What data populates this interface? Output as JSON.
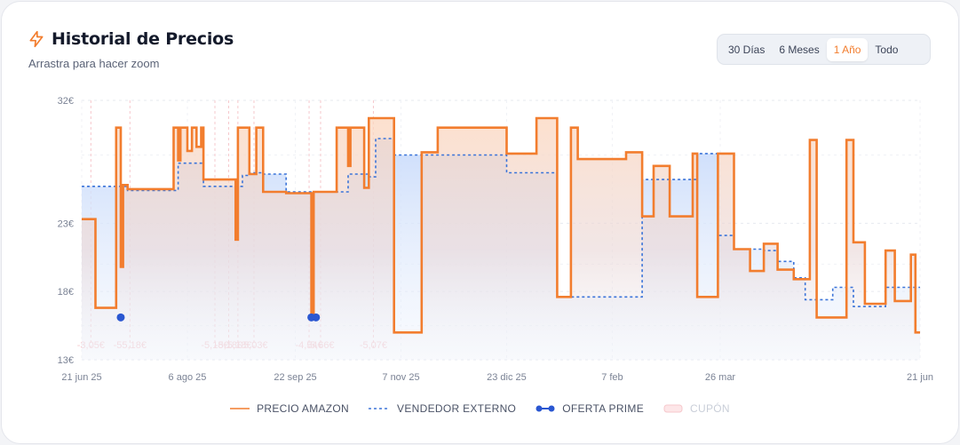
{
  "header": {
    "title": "Historial de Precios",
    "subtitle": "Arrastra para hacer zoom",
    "icon": "lightning-icon",
    "accent": "#f27d2e"
  },
  "range_buttons": [
    {
      "label": "30 Días",
      "active": false
    },
    {
      "label": "6 Meses",
      "active": false
    },
    {
      "label": "1 Año",
      "active": true
    },
    {
      "label": "Todo",
      "active": false
    }
  ],
  "legend": {
    "amazon": "PRECIO AMAZON",
    "external": "VENDEDOR EXTERNO",
    "prime": "OFERTA PRIME",
    "coupon": "CUPÓN"
  },
  "chart_data": {
    "type": "line",
    "ylim": [
      13,
      32
    ],
    "y_ticks": [
      {
        "v": 32,
        "label": "32€"
      },
      {
        "v": 23,
        "label": "23€"
      },
      {
        "v": 18,
        "label": "18€"
      },
      {
        "v": 13,
        "label": "13€"
      }
    ],
    "x_range": [
      "2025-06-21",
      "2026-06-21"
    ],
    "x_ticks": [
      {
        "date": "2025-06-21",
        "label": "21 jun 25"
      },
      {
        "date": "2025-08-06",
        "label": "6 ago 25"
      },
      {
        "date": "2025-09-22",
        "label": "22 sep 25"
      },
      {
        "date": "2025-11-07",
        "label": "7 nov 25"
      },
      {
        "date": "2025-12-23",
        "label": "23 dic 25"
      },
      {
        "date": "2026-02-07",
        "label": "7 feb"
      },
      {
        "date": "2026-03-26",
        "label": "26 mar"
      },
      {
        "date": "2026-06-21",
        "label": "21 jun"
      }
    ],
    "colors": {
      "amazon": "#f27d2e",
      "external": "#3b74d9",
      "prime": "#2a57d1",
      "coupon": "#f6c8cc",
      "grid": "#e6e9ef"
    },
    "series": [
      {
        "name": "PRECIO AMAZON",
        "points": [
          [
            "2025-06-21",
            23.3
          ],
          [
            "2025-06-27",
            16.8
          ],
          [
            "2025-07-06",
            30
          ],
          [
            "2025-07-08",
            19.8
          ],
          [
            "2025-07-09",
            25.8
          ],
          [
            "2025-07-11",
            25.5
          ],
          [
            "2025-07-31",
            30
          ],
          [
            "2025-08-02",
            27.6
          ],
          [
            "2025-08-03",
            30
          ],
          [
            "2025-08-06",
            28.3
          ],
          [
            "2025-08-08",
            30
          ],
          [
            "2025-08-10",
            28.6
          ],
          [
            "2025-08-12",
            30
          ],
          [
            "2025-08-13",
            26.2
          ],
          [
            "2025-08-27",
            21.8
          ],
          [
            "2025-08-28",
            30
          ],
          [
            "2025-09-02",
            26.6
          ],
          [
            "2025-09-05",
            30
          ],
          [
            "2025-09-08",
            25.3
          ],
          [
            "2025-09-18",
            25.2
          ],
          [
            "2025-09-29",
            16.1
          ],
          [
            "2025-09-30",
            25.3
          ],
          [
            "2025-10-10",
            30
          ],
          [
            "2025-10-15",
            27.2
          ],
          [
            "2025-10-16",
            30
          ],
          [
            "2025-10-22",
            25.6
          ],
          [
            "2025-10-24",
            30.7
          ],
          [
            "2025-11-04",
            15
          ],
          [
            "2025-11-16",
            28.2
          ],
          [
            "2025-11-23",
            30
          ],
          [
            "2025-12-23",
            28.1
          ],
          [
            "2026-01-05",
            30.7
          ],
          [
            "2026-01-14",
            17.6
          ],
          [
            "2026-01-20",
            30
          ],
          [
            "2026-01-23",
            27.7
          ],
          [
            "2026-02-13",
            28.2
          ],
          [
            "2026-02-20",
            23.5
          ],
          [
            "2026-02-25",
            27.2
          ],
          [
            "2026-03-04",
            23.5
          ],
          [
            "2026-03-14",
            28.1
          ],
          [
            "2026-03-16",
            17.6
          ],
          [
            "2026-03-25",
            28.1
          ],
          [
            "2026-04-01",
            21.1
          ],
          [
            "2026-04-08",
            19.5
          ],
          [
            "2026-04-14",
            21.5
          ],
          [
            "2026-04-20",
            19.6
          ],
          [
            "2026-04-27",
            18.9
          ],
          [
            "2026-05-01",
            18.9
          ],
          [
            "2026-05-04",
            29.1
          ],
          [
            "2026-05-07",
            16.1
          ],
          [
            "2026-05-20",
            29.1
          ],
          [
            "2026-05-23",
            21.6
          ],
          [
            "2026-05-28",
            17.1
          ],
          [
            "2026-06-06",
            21
          ],
          [
            "2026-06-10",
            17.3
          ],
          [
            "2026-06-17",
            20.7
          ],
          [
            "2026-06-19",
            15
          ],
          [
            "2026-06-21",
            15
          ]
        ]
      },
      {
        "name": "VENDEDOR EXTERNO",
        "points": [
          [
            "2025-06-21",
            25.7
          ],
          [
            "2025-07-11",
            25.4
          ],
          [
            "2025-08-02",
            27.4
          ],
          [
            "2025-08-13",
            25.7
          ],
          [
            "2025-08-30",
            26.5
          ],
          [
            "2025-09-02",
            26.7
          ],
          [
            "2025-09-08",
            26.6
          ],
          [
            "2025-09-18",
            25.3
          ],
          [
            "2025-10-15",
            26.6
          ],
          [
            "2025-10-24",
            26.4
          ],
          [
            "2025-10-27",
            29.2
          ],
          [
            "2025-11-04",
            28
          ],
          [
            "2025-12-23",
            26.7
          ],
          [
            "2026-01-14",
            17.6
          ],
          [
            "2026-02-13",
            17.6
          ],
          [
            "2026-02-20",
            26.2
          ],
          [
            "2026-03-16",
            28.1
          ],
          [
            "2026-03-25",
            22.1
          ],
          [
            "2026-04-01",
            21.1
          ],
          [
            "2026-04-14",
            21
          ],
          [
            "2026-04-20",
            20.2
          ],
          [
            "2026-04-27",
            19
          ],
          [
            "2026-05-02",
            17.4
          ],
          [
            "2026-05-14",
            18.3
          ],
          [
            "2026-05-23",
            16.9
          ],
          [
            "2026-06-06",
            18.3
          ],
          [
            "2026-06-21",
            18.3
          ]
        ]
      }
    ],
    "prime_offers": [
      {
        "date": "2025-07-08",
        "value": 16.1
      },
      {
        "date": "2025-09-29",
        "value": 16.1
      },
      {
        "date": "2025-10-01",
        "value": 16.1
      }
    ],
    "coupons": [
      {
        "date": "2025-06-25",
        "label": "-3,05€"
      },
      {
        "date": "2025-07-12",
        "label": "-55,18€"
      },
      {
        "date": "2025-08-18",
        "label": "-5,18€"
      },
      {
        "date": "2025-08-24",
        "label": "-5,18€"
      },
      {
        "date": "2025-08-28",
        "label": "-5,18€"
      },
      {
        "date": "2025-09-04",
        "label": "-5,03€"
      },
      {
        "date": "2025-09-28",
        "label": "-4,54€"
      },
      {
        "date": "2025-10-03",
        "label": "-5,66€"
      },
      {
        "date": "2025-10-26",
        "label": "-5,07€"
      }
    ]
  }
}
